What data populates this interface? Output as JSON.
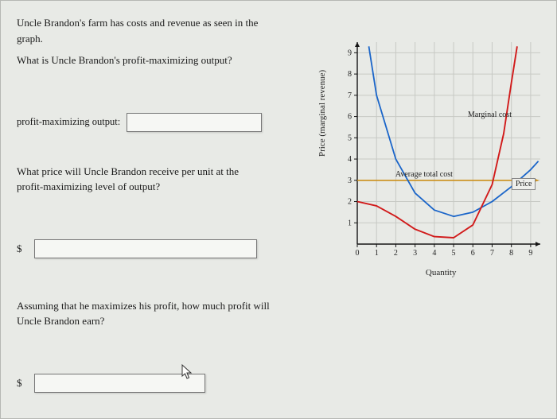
{
  "prompt1_a": "Uncle Brandon's farm has costs and revenue as seen in the",
  "prompt1_b": "graph.",
  "prompt2": "What is Uncle Brandon's profit-maximizing output?",
  "field1_label": "profit-maximizing output:",
  "prompt3_a": "What price will Uncle Brandon receive per unit at the",
  "prompt3_b": "profit-maximizing level of output?",
  "prompt4_a": "Assuming that he maximizes his profit, how much profit will",
  "prompt4_b": "Uncle Brandon earn?",
  "dollar": "$",
  "chart": {
    "type": "line",
    "xlabel": "Quantity",
    "ylabel": "Price (marginal revenue)",
    "xlim": [
      0,
      9.5
    ],
    "ylim": [
      0,
      9.5
    ],
    "xticks": [
      0,
      1,
      2,
      3,
      4,
      5,
      6,
      7,
      8,
      9
    ],
    "yticks": [
      1,
      2,
      3,
      4,
      5,
      6,
      7,
      8,
      9
    ],
    "bg": "#e8eae6",
    "grid_color": "#c7c9c4",
    "axis_color": "#151515",
    "mc_color": "#d11a1a",
    "atc_color": "#1a65c9",
    "price_color": "#cc8f1a",
    "label_mc": "Marginal cost",
    "label_atc": "Average total cost",
    "label_price": "Price",
    "price_value": 3,
    "mc_points": [
      [
        0,
        2.0
      ],
      [
        1,
        1.8
      ],
      [
        2,
        1.3
      ],
      [
        3,
        0.7
      ],
      [
        4,
        0.35
      ],
      [
        5,
        0.3
      ],
      [
        6,
        0.9
      ],
      [
        7,
        2.8
      ],
      [
        7.6,
        5.2
      ],
      [
        8,
        7.6
      ],
      [
        8.3,
        9.3
      ]
    ],
    "atc_points": [
      [
        0.6,
        9.3
      ],
      [
        1,
        7.0
      ],
      [
        2,
        4.0
      ],
      [
        3,
        2.4
      ],
      [
        4,
        1.6
      ],
      [
        5,
        1.3
      ],
      [
        6,
        1.5
      ],
      [
        7,
        2.0
      ],
      [
        8,
        2.7
      ],
      [
        9,
        3.5
      ],
      [
        9.4,
        3.9
      ]
    ]
  }
}
